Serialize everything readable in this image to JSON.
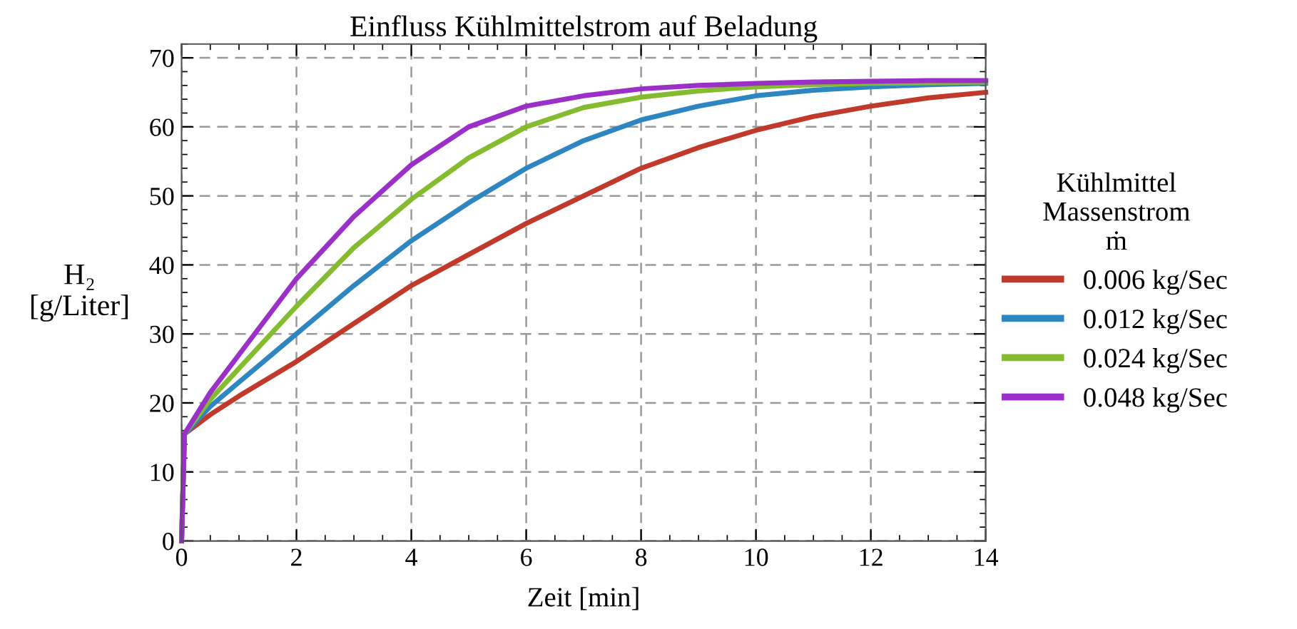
{
  "chart_data": {
    "type": "line",
    "title": "Einfluss Kühlmittelstrom auf Beladung",
    "xlabel": "Zeit [min]",
    "ylabel": "H₂\n[g/Liter]",
    "legend_title": "Kühlmittel\nMassenstrom\nṁ",
    "x": [
      0,
      0.05,
      0.5,
      1,
      2,
      3,
      4,
      5,
      6,
      7,
      8,
      9,
      10,
      11,
      12,
      13,
      14
    ],
    "series": [
      {
        "name": "0.006 kg/Sec",
        "color": "#c0392b",
        "values": [
          0,
          15.5,
          18.3,
          21,
          26,
          31.5,
          37,
          41.5,
          46,
          50,
          54,
          57,
          59.5,
          61.5,
          63,
          64.2,
          65
        ]
      },
      {
        "name": "0.012 kg/Sec",
        "color": "#2e86c1",
        "values": [
          0,
          15.5,
          19.5,
          23,
          30,
          37,
          43.5,
          49,
          54,
          58,
          61,
          63,
          64.5,
          65.3,
          65.8,
          66.1,
          66.3
        ]
      },
      {
        "name": "0.024 kg/Sec",
        "color": "#85bb2f",
        "values": [
          0,
          15.5,
          20.5,
          25,
          34,
          42.5,
          49.5,
          55.5,
          60,
          62.8,
          64.3,
          65.2,
          65.8,
          66.1,
          66.3,
          66.4,
          66.5
        ]
      },
      {
        "name": "0.048 kg/Sec",
        "color": "#9b30c9",
        "values": [
          0,
          15.5,
          21.5,
          27,
          38,
          47,
          54.5,
          60,
          63,
          64.5,
          65.5,
          66,
          66.3,
          66.5,
          66.6,
          66.7,
          66.7
        ]
      }
    ],
    "xlim": [
      0,
      14
    ],
    "xticks": [
      0,
      2,
      4,
      6,
      8,
      10,
      12,
      14
    ],
    "ylim": [
      0,
      72
    ],
    "yticks": [
      0,
      10,
      20,
      30,
      40,
      50,
      60,
      70
    ],
    "grid": true,
    "legend": "right",
    "line_style": "solid",
    "marker": "none"
  }
}
